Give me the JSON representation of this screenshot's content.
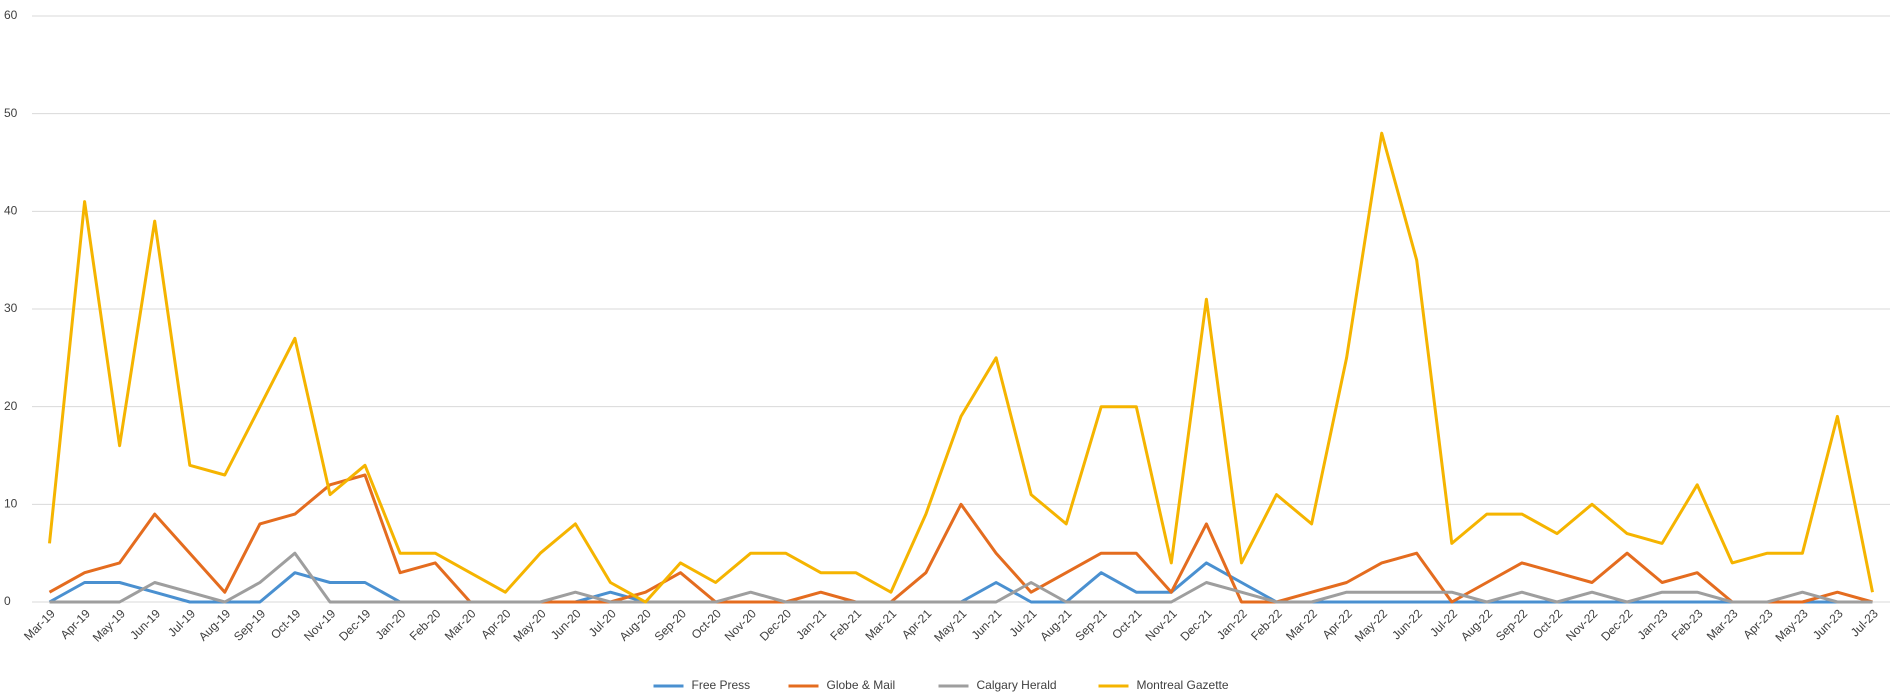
{
  "chart_data": {
    "type": "line",
    "categories": [
      "Mar-19",
      "Apr-19",
      "May-19",
      "Jun-19",
      "Jul-19",
      "Aug-19",
      "Sep-19",
      "Oct-19",
      "Nov-19",
      "Dec-19",
      "Jan-20",
      "Feb-20",
      "Mar-20",
      "Apr-20",
      "May-20",
      "Jun-20",
      "Jul-20",
      "Aug-20",
      "Sep-20",
      "Oct-20",
      "Nov-20",
      "Dec-20",
      "Jan-21",
      "Feb-21",
      "Mar-21",
      "Apr-21",
      "May-21",
      "Jun-21",
      "Jul-21",
      "Aug-21",
      "Sep-21",
      "Oct-21",
      "Nov-21",
      "Dec-21",
      "Jan-22",
      "Feb-22",
      "Mar-22",
      "Apr-22",
      "May-22",
      "Jun-22",
      "Jul-22",
      "Aug-22",
      "Sep-22",
      "Oct-22",
      "Nov-22",
      "Dec-22",
      "Jan-23",
      "Feb-23",
      "Mar-23",
      "Apr-23",
      "May-23",
      "Jun-23",
      "Jul-23"
    ],
    "series": [
      {
        "name": "Free Press",
        "color": "#4a90d0",
        "values": [
          0,
          2,
          2,
          1,
          0,
          0,
          0,
          3,
          2,
          2,
          0,
          0,
          0,
          0,
          0,
          0,
          1,
          0,
          0,
          0,
          0,
          0,
          0,
          0,
          0,
          0,
          0,
          2,
          0,
          0,
          3,
          1,
          1,
          4,
          2,
          0,
          0,
          0,
          0,
          0,
          0,
          0,
          0,
          0,
          0,
          0,
          0,
          0,
          0,
          0,
          0,
          0,
          0
        ]
      },
      {
        "name": "Globe & Mail",
        "color": "#e46c1f",
        "values": [
          1,
          3,
          4,
          9,
          5,
          1,
          8,
          9,
          12,
          13,
          3,
          4,
          0,
          0,
          0,
          0,
          0,
          1,
          3,
          0,
          0,
          0,
          1,
          0,
          0,
          3,
          10,
          5,
          1,
          3,
          5,
          5,
          1,
          8,
          0,
          0,
          1,
          2,
          4,
          5,
          0,
          2,
          4,
          3,
          2,
          5,
          2,
          3,
          0,
          0,
          0,
          1,
          0
        ]
      },
      {
        "name": "Calgary Herald",
        "color": "#9e9e9e",
        "values": [
          0,
          0,
          0,
          2,
          1,
          0,
          2,
          5,
          0,
          0,
          0,
          0,
          0,
          0,
          0,
          1,
          0,
          0,
          0,
          0,
          1,
          0,
          0,
          0,
          0,
          0,
          0,
          0,
          2,
          0,
          0,
          0,
          0,
          2,
          1,
          0,
          0,
          1,
          1,
          1,
          1,
          0,
          1,
          0,
          1,
          0,
          1,
          1,
          0,
          0,
          1,
          0,
          0
        ]
      },
      {
        "name": "Montreal Gazette",
        "color": "#f5b400",
        "values": [
          6,
          41,
          16,
          39,
          14,
          13,
          20,
          27,
          11,
          14,
          5,
          5,
          3,
          1,
          5,
          8,
          2,
          0,
          4,
          2,
          5,
          5,
          3,
          3,
          1,
          9,
          19,
          25,
          11,
          8,
          20,
          20,
          4,
          31,
          4,
          11,
          8,
          25,
          48,
          35,
          6,
          9,
          9,
          7,
          10,
          7,
          6,
          12,
          4,
          5,
          5,
          19,
          1
        ]
      }
    ],
    "ylim": [
      0,
      60
    ],
    "yticks": [
      0,
      10,
      20,
      30,
      40,
      50,
      60
    ],
    "grid": true,
    "legend": "bottom"
  }
}
